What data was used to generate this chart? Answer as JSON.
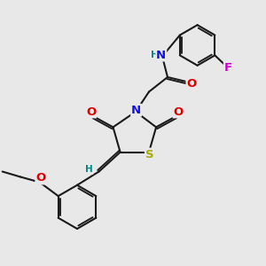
{
  "bg_color": "#e8e8e8",
  "bond_color": "#1a1a1a",
  "bond_width": 1.5,
  "atom_colors": {
    "O": "#dd0000",
    "N": "#1111ee",
    "S": "#aaaa00",
    "F": "#cc00cc",
    "H": "#008888",
    "C": "#1a1a1a"
  },
  "fs": 9.0,
  "fs_small": 7.5
}
